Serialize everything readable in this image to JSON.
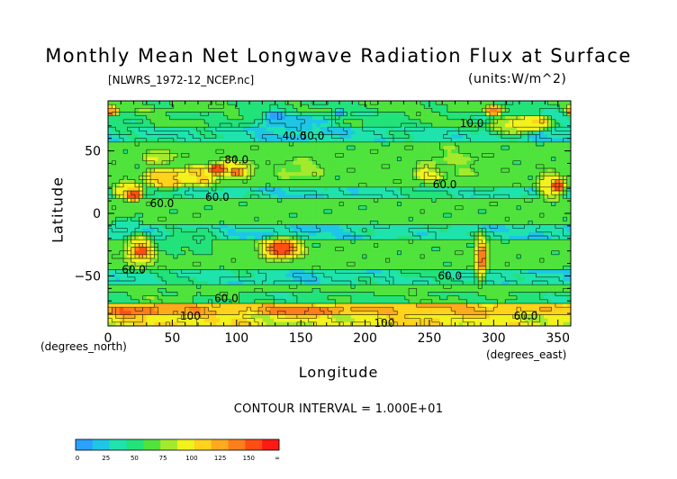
{
  "chart_data": {
    "type": "heatmap",
    "title": "Monthly Mean Net Longwave Radiation Flux at Surface",
    "source_file": "[NLWRS_1972-12_NCEP.nc]",
    "units": "(units:W/m^2)",
    "xlabel": "Longitude",
    "ylabel": "Latitude",
    "x_units_note": "(degrees_east)",
    "y_units_note": "(degrees_north)",
    "contour_interval": "CONTOUR INTERVAL = 1.000E+01",
    "xlim": [
      0,
      360
    ],
    "ylim": [
      -90,
      90
    ],
    "x_ticks": [
      0,
      50,
      100,
      150,
      200,
      250,
      300,
      350
    ],
    "y_ticks": [
      50,
      0,
      -50
    ],
    "contour_labels": [
      {
        "text": "60.0",
        "lon": 20,
        "lat": -45
      },
      {
        "text": "60.0",
        "lon": 42,
        "lat": 8
      },
      {
        "text": "60.0",
        "lon": 85,
        "lat": 13
      },
      {
        "text": "80.0",
        "lon": 100,
        "lat": 43
      },
      {
        "text": "40.0",
        "lon": 145,
        "lat": 62
      },
      {
        "text": "50.0",
        "lon": 159,
        "lat": 62
      },
      {
        "text": "60.0",
        "lon": 262,
        "lat": 23
      },
      {
        "text": "60.0",
        "lon": 266,
        "lat": -50
      },
      {
        "text": "100",
        "lon": 215,
        "lat": -88
      },
      {
        "text": "100",
        "lon": 64,
        "lat": -82
      },
      {
        "text": "60.0",
        "lon": 92,
        "lat": -68
      },
      {
        "text": "60.0",
        "lon": 325,
        "lat": -82
      },
      {
        "text": "10.0",
        "lon": 283,
        "lat": 72
      }
    ],
    "colorbar": {
      "tick_labels": [
        "0",
        "25",
        "50",
        "75",
        "100",
        "125",
        "150",
        "∞"
      ],
      "bins": [
        {
          "lo": 0,
          "hi": 12.5,
          "color": "#2aa0ff"
        },
        {
          "lo": 12.5,
          "hi": 25,
          "color": "#1ec6e6"
        },
        {
          "lo": 25,
          "hi": 37.5,
          "color": "#1fe3ac"
        },
        {
          "lo": 37.5,
          "hi": 50,
          "color": "#22e27a"
        },
        {
          "lo": 50,
          "hi": 62.5,
          "color": "#4fe33c"
        },
        {
          "lo": 62.5,
          "hi": 75,
          "color": "#a4ea2c"
        },
        {
          "lo": 75,
          "hi": 87.5,
          "color": "#f2f21c"
        },
        {
          "lo": 87.5,
          "hi": 100,
          "color": "#ffd21c"
        },
        {
          "lo": 100,
          "hi": 112.5,
          "color": "#ffaa1c"
        },
        {
          "lo": 112.5,
          "hi": 125,
          "color": "#ff7e1c"
        },
        {
          "lo": 125,
          "hi": 150,
          "color": "#ff4e14"
        },
        {
          "lo": 150,
          "hi": 1000,
          "color": "#ff1a14"
        }
      ]
    },
    "field": {
      "background_value": 55,
      "bands": [
        {
          "lat_from": 58,
          "lat_to": 70,
          "value": 30
        },
        {
          "lat_from": 70,
          "lat_to": 82,
          "value": 45
        },
        {
          "lat_from": 82,
          "lat_to": 90,
          "value": 50
        },
        {
          "lat_from": 12,
          "lat_to": 22,
          "value": 32
        },
        {
          "lat_from": -22,
          "lat_to": -10,
          "value": 30
        },
        {
          "lat_from": -58,
          "lat_to": -46,
          "value": 32
        },
        {
          "lat_from": -72,
          "lat_to": -62,
          "value": 48
        },
        {
          "lat_from": -82,
          "lat_to": -72,
          "value": 95
        },
        {
          "lat_from": -90,
          "lat_to": -82,
          "value": 82
        }
      ],
      "features": [
        {
          "lon": 15,
          "lat": 18,
          "rx": 16,
          "ry": 9,
          "value": 85
        },
        {
          "lon": 20,
          "lat": 14,
          "rx": 8,
          "ry": 5,
          "value": 130
        },
        {
          "lon": 45,
          "lat": 28,
          "rx": 22,
          "ry": 10,
          "value": 92
        },
        {
          "lon": 70,
          "lat": 30,
          "rx": 20,
          "ry": 10,
          "value": 88
        },
        {
          "lon": 95,
          "lat": 35,
          "rx": 25,
          "ry": 10,
          "value": 80
        },
        {
          "lon": 85,
          "lat": 35,
          "rx": 8,
          "ry": 5,
          "value": 135
        },
        {
          "lon": 100,
          "lat": 33,
          "rx": 6,
          "ry": 4,
          "value": 120
        },
        {
          "lon": 2,
          "lat": 82,
          "rx": 8,
          "ry": 5,
          "value": 110
        },
        {
          "lon": 40,
          "lat": 45,
          "rx": 15,
          "ry": 8,
          "value": 72
        },
        {
          "lon": 150,
          "lat": 35,
          "rx": 25,
          "ry": 10,
          "value": 65
        },
        {
          "lon": 250,
          "lat": 32,
          "rx": 15,
          "ry": 8,
          "value": 80
        },
        {
          "lon": 255,
          "lat": 35,
          "rx": 5,
          "ry": 3,
          "value": 95
        },
        {
          "lon": 270,
          "lat": 42,
          "rx": 30,
          "ry": 16,
          "value": 62
        },
        {
          "lon": 345,
          "lat": 22,
          "rx": 15,
          "ry": 14,
          "value": 82
        },
        {
          "lon": 350,
          "lat": 22,
          "rx": 6,
          "ry": 5,
          "value": 128
        },
        {
          "lon": 315,
          "lat": 70,
          "rx": 25,
          "ry": 10,
          "value": 70
        },
        {
          "lon": 330,
          "lat": 72,
          "rx": 20,
          "ry": 8,
          "value": 85
        },
        {
          "lon": 300,
          "lat": 82,
          "rx": 8,
          "ry": 5,
          "value": 110
        },
        {
          "lon": 145,
          "lat": 72,
          "rx": 35,
          "ry": 8,
          "value": 20
        },
        {
          "lon": 130,
          "lat": 78,
          "rx": 10,
          "ry": 5,
          "value": 8
        },
        {
          "lon": 180,
          "lat": 80,
          "rx": 6,
          "ry": 4,
          "value": 10
        },
        {
          "lon": 15,
          "lat": -10,
          "rx": 15,
          "ry": 8,
          "value": 30
        },
        {
          "lon": 25,
          "lat": -30,
          "rx": 16,
          "ry": 16,
          "value": 82
        },
        {
          "lon": 25,
          "lat": -30,
          "rx": 7,
          "ry": 6,
          "value": 125
        },
        {
          "lon": 135,
          "lat": -28,
          "rx": 22,
          "ry": 12,
          "value": 88
        },
        {
          "lon": 135,
          "lat": -28,
          "rx": 12,
          "ry": 7,
          "value": 135
        },
        {
          "lon": 290,
          "lat": -35,
          "rx": 7,
          "ry": 25,
          "value": 82
        },
        {
          "lon": 291,
          "lat": -35,
          "rx": 3,
          "ry": 14,
          "value": 125
        },
        {
          "lon": 60,
          "lat": -25,
          "rx": 30,
          "ry": 10,
          "value": 45
        },
        {
          "lon": 20,
          "lat": -78,
          "rx": 25,
          "ry": 5,
          "value": 125
        },
        {
          "lon": 150,
          "lat": -78,
          "rx": 40,
          "ry": 5,
          "value": 120
        },
        {
          "lon": 60,
          "lat": -78,
          "rx": 20,
          "ry": 4,
          "value": 110
        }
      ]
    }
  }
}
